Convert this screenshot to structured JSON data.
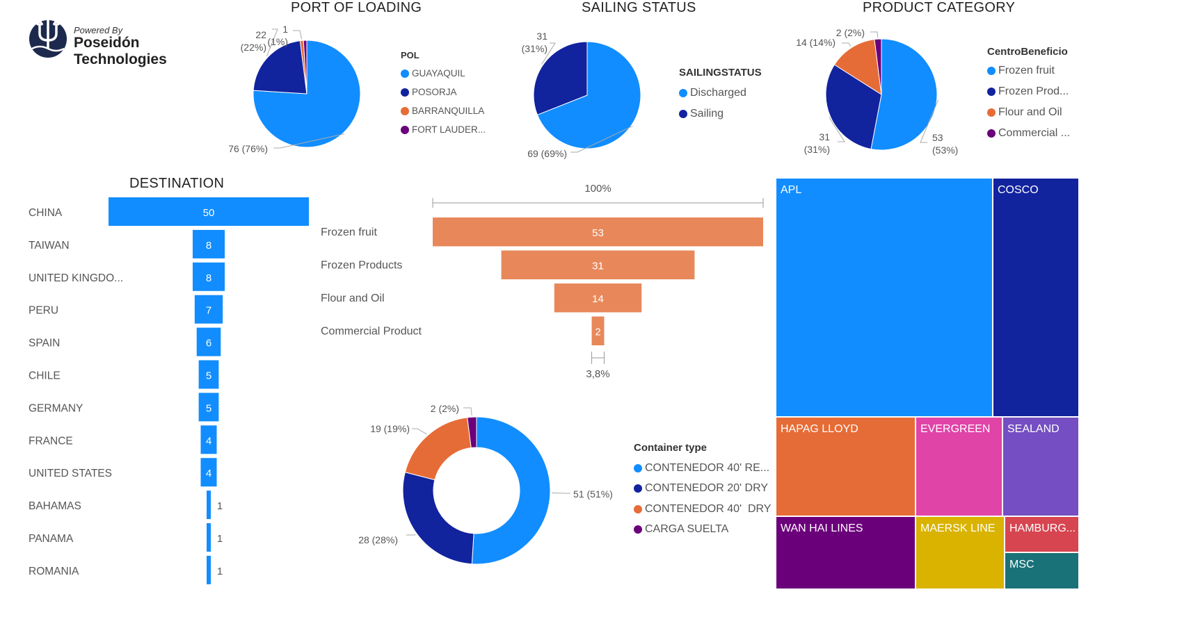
{
  "logo": {
    "powered": "Powered By",
    "brand": "Poseidón Technologies"
  },
  "colors": {
    "blue": "#118DFF",
    "navy": "#12239E",
    "orange": "#E66C37",
    "purple": "#6B007B",
    "salmon": "#E8885A",
    "pink": "#E044A7",
    "violet": "#744EC2",
    "gold": "#D9B300",
    "red": "#D64550",
    "teal": "#197278"
  },
  "chart_data": [
    {
      "id": "pol",
      "type": "pie",
      "title": "PORT OF LOADING",
      "legend_title": "POL",
      "slices": [
        {
          "name": "GUAYAQUIL",
          "legend": "GUAYAQUIL",
          "value": 76,
          "label": "76 (76%)",
          "color": "#118DFF"
        },
        {
          "name": "POSORJA",
          "legend": "POSORJA",
          "value": 22,
          "label": "22 (22%)",
          "color": "#12239E"
        },
        {
          "name": "BARRANQUILLA",
          "legend": "BARRANQUILLA",
          "value": 1,
          "label": "1 (1%)",
          "color": "#E66C37"
        },
        {
          "name": "FORT LAUDERDALE",
          "legend": "FORT LAUDER...",
          "value": 1,
          "label": "",
          "color": "#6B007B"
        }
      ]
    },
    {
      "id": "sailing",
      "type": "pie",
      "title": "SAILING STATUS",
      "legend_title": "SAILINGSTATUS",
      "slices": [
        {
          "name": "Discharged",
          "legend": "Discharged",
          "value": 69,
          "label": "69 (69%)",
          "color": "#118DFF"
        },
        {
          "name": "Sailing",
          "legend": "Sailing",
          "value": 31,
          "label": "31 (31%)",
          "color": "#12239E"
        }
      ]
    },
    {
      "id": "category",
      "type": "pie",
      "title": "PRODUCT CATEGORY",
      "legend_title": "CentroBeneficio",
      "slices": [
        {
          "name": "Frozen fruit",
          "legend": "Frozen fruit",
          "value": 53,
          "label": "53 (53%)",
          "color": "#118DFF"
        },
        {
          "name": "Frozen Products",
          "legend": "Frozen Prod...",
          "value": 31,
          "label": "31 (31%)",
          "color": "#12239E"
        },
        {
          "name": "Flour and Oil",
          "legend": "Flour and Oil",
          "value": 14,
          "label": "14 (14%)",
          "color": "#E66C37"
        },
        {
          "name": "Commercial Product",
          "legend": "Commercial ...",
          "value": 2,
          "label": "2 (2%)",
          "color": "#6B007B"
        }
      ]
    },
    {
      "id": "destination",
      "type": "bar",
      "orientation": "horizontal-centered",
      "title": "DESTINATION",
      "categories": [
        "CHINA",
        "TAIWAN",
        "UNITED KINGDO...",
        "PERU",
        "SPAIN",
        "CHILE",
        "GERMANY",
        "FRANCE",
        "UNITED STATES",
        "BAHAMAS",
        "PANAMA",
        "ROMANIA"
      ],
      "values": [
        50,
        8,
        8,
        7,
        6,
        5,
        5,
        4,
        4,
        1,
        1,
        1
      ],
      "color": "#118DFF"
    },
    {
      "id": "funnel",
      "type": "bar",
      "orientation": "funnel",
      "top_label": "100%",
      "bottom_label": "3,8%",
      "categories": [
        "Frozen fruit",
        "Frozen Products",
        "Flour and Oil",
        "Commercial Product"
      ],
      "values": [
        53,
        31,
        14,
        2
      ],
      "color": "#E8885A"
    },
    {
      "id": "container",
      "type": "pie",
      "variant": "donut",
      "legend_title": "Container type",
      "slices": [
        {
          "name": "CONTENEDOR 40' REEFER",
          "legend": "CONTENEDOR 40' RE...",
          "value": 51,
          "label": "51 (51%)",
          "color": "#118DFF"
        },
        {
          "name": "CONTENEDOR 20' DRY",
          "legend": "CONTENEDOR 20' DRY",
          "value": 28,
          "label": "28 (28%)",
          "color": "#12239E"
        },
        {
          "name": "CONTENEDOR 40' DRY",
          "legend": "CONTENEDOR 40'  DRY",
          "value": 19,
          "label": "19 (19%)",
          "color": "#E66C37"
        },
        {
          "name": "CARGA SUELTA",
          "legend": "CARGA SUELTA",
          "value": 2,
          "label": "2 (2%)",
          "color": "#6B007B"
        }
      ]
    },
    {
      "id": "carriers",
      "type": "treemap",
      "items": [
        {
          "name": "APL",
          "label": "APL",
          "color": "#118DFF"
        },
        {
          "name": "COSCO",
          "label": "COSCO",
          "color": "#12239E"
        },
        {
          "name": "HAPAG LLOYD",
          "label": "HAPAG LLOYD",
          "color": "#E66C37"
        },
        {
          "name": "EVERGREEN",
          "label": "EVERGREEN",
          "color": "#E044A7"
        },
        {
          "name": "SEALAND",
          "label": "SEALAND",
          "color": "#744EC2"
        },
        {
          "name": "WAN HAI LINES",
          "label": "WAN HAI LINES",
          "color": "#6B007B"
        },
        {
          "name": "MAERSK LINE",
          "label": "MAERSK LINE",
          "color": "#D9B300"
        },
        {
          "name": "HAMBURG SUD",
          "label": "HAMBURG...",
          "color": "#D64550"
        },
        {
          "name": "MSC",
          "label": "MSC",
          "color": "#197278"
        }
      ]
    }
  ]
}
